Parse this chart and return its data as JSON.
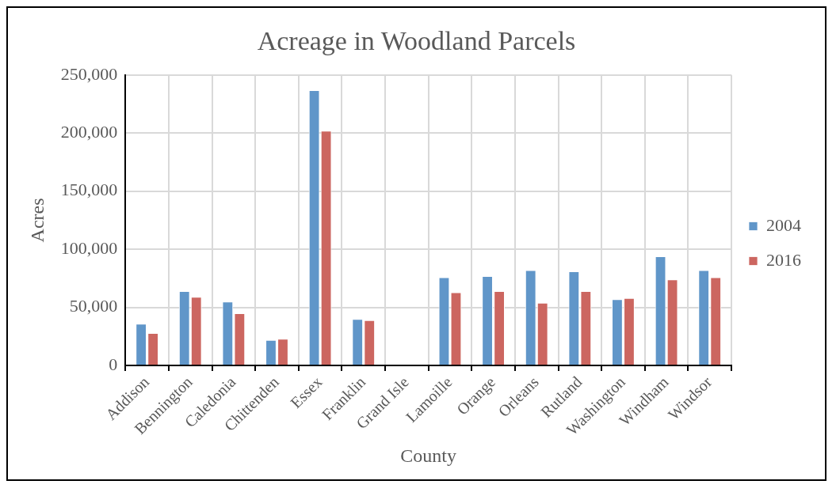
{
  "chart_data": {
    "type": "bar",
    "title": "Acreage in Woodland Parcels",
    "xlabel": "County",
    "ylabel": "Acres",
    "categories": [
      "Addison",
      "Bennington",
      "Caledonia",
      "Chittenden",
      "Essex",
      "Franklin",
      "Grand Isle",
      "Lamoille",
      "Orange",
      "Orleans",
      "Rutland",
      "Washington",
      "Windham",
      "Windsor"
    ],
    "series": [
      {
        "name": "2004",
        "color": "#6096c9",
        "values": [
          36000,
          64000,
          55000,
          22000,
          237000,
          40000,
          null,
          76000,
          77000,
          82000,
          81000,
          57000,
          94000,
          82000
        ]
      },
      {
        "name": "2016",
        "color": "#cc6660",
        "values": [
          28000,
          59000,
          45000,
          23000,
          202000,
          39000,
          null,
          63000,
          64000,
          54000,
          64000,
          58000,
          74000,
          76000
        ]
      }
    ],
    "ylim": [
      0,
      250000
    ],
    "yticks": [
      {
        "value": 0,
        "label": "0"
      },
      {
        "value": 50000,
        "label": "50,000"
      },
      {
        "value": 100000,
        "label": "100,000"
      },
      {
        "value": 150000,
        "label": "150,000"
      },
      {
        "value": 200000,
        "label": "200,000"
      },
      {
        "value": 250000,
        "label": "250,000"
      }
    ],
    "grid": true,
    "legend": "right"
  }
}
